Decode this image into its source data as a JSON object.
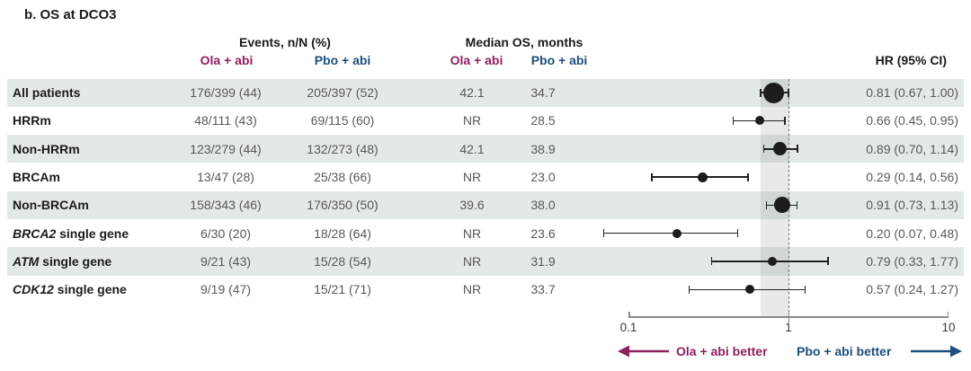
{
  "title": "b. OS at DCO3",
  "columns": {
    "events_group": "Events, n/N (%)",
    "median_group": "Median OS, months",
    "arm_ola": "Ola + abi",
    "arm_pbo": "Pbo + abi",
    "hr": "HR (95% CI)"
  },
  "colors": {
    "ola_accent": "#8e1f5f",
    "pbo_accent": "#1d4e7d",
    "row_shade": "#e3e9e6",
    "marker": "#1c1c1c"
  },
  "axis": {
    "label_min": "0.1",
    "label_mid": "1",
    "label_max": "10"
  },
  "legend": {
    "left": "Ola + abi better",
    "right": "Pbo + abi better"
  },
  "chart_data": {
    "type": "forest",
    "title": "b. OS at DCO3",
    "x_axis": {
      "scale": "log",
      "range": [
        0.1,
        10
      ],
      "ticks": [
        0.1,
        1,
        10
      ]
    },
    "reference_line": 1.0,
    "reference_band": [
      0.67,
      1.0
    ],
    "rows": [
      {
        "group_italic": "",
        "group": "All patients",
        "events_ola": "176/399 (44)",
        "events_pbo": "205/397 (52)",
        "median_ola": "42.1",
        "median_pbo": "34.7",
        "hr_text": "0.81 (0.67, 1.00)",
        "hr": 0.81,
        "ci_low": 0.67,
        "ci_high": 1.0,
        "marker_size": 23,
        "shaded": true
      },
      {
        "group_italic": "",
        "group": "HRRm",
        "events_ola": "48/111 (43)",
        "events_pbo": "69/115 (60)",
        "median_ola": "NR",
        "median_pbo": "28.5",
        "hr_text": "0.66 (0.45, 0.95)",
        "hr": 0.66,
        "ci_low": 0.45,
        "ci_high": 0.95,
        "marker_size": 10,
        "shaded": false
      },
      {
        "group_italic": "",
        "group": "Non-HRRm",
        "events_ola": "123/279 (44)",
        "events_pbo": "132/273 (48)",
        "median_ola": "42.1",
        "median_pbo": "38.9",
        "hr_text": "0.89 (0.70, 1.14)",
        "hr": 0.89,
        "ci_low": 0.7,
        "ci_high": 1.14,
        "marker_size": 15,
        "shaded": true
      },
      {
        "group_italic": "",
        "group": "BRCAm",
        "events_ola": "13/47 (28)",
        "events_pbo": "25/38 (66)",
        "median_ola": "NR",
        "median_pbo": "23.0",
        "hr_text": "0.29 (0.14, 0.56)",
        "hr": 0.29,
        "ci_low": 0.14,
        "ci_high": 0.56,
        "marker_size": 11,
        "shaded": false
      },
      {
        "group_italic": "",
        "group": "Non-BRCAm",
        "events_ola": "158/343 (46)",
        "events_pbo": "176/350 (50)",
        "median_ola": "39.6",
        "median_pbo": "38.0",
        "hr_text": "0.91 (0.73, 1.13)",
        "hr": 0.91,
        "ci_low": 0.73,
        "ci_high": 1.13,
        "marker_size": 18,
        "shaded": true
      },
      {
        "group_italic": "BRCA2",
        "group": " single gene",
        "events_ola": "6/30 (20)",
        "events_pbo": "18/28 (64)",
        "median_ola": "NR",
        "median_pbo": "23.6",
        "hr_text": "0.20 (0.07, 0.48)",
        "hr": 0.2,
        "ci_low": 0.07,
        "ci_high": 0.48,
        "marker_size": 10,
        "shaded": false
      },
      {
        "group_italic": "ATM",
        "group": " single gene",
        "events_ola": "9/21 (43)",
        "events_pbo": "15/28 (54)",
        "median_ola": "NR",
        "median_pbo": "31.9",
        "hr_text": "0.79 (0.33, 1.77)",
        "hr": 0.79,
        "ci_low": 0.33,
        "ci_high": 1.77,
        "marker_size": 10,
        "shaded": true
      },
      {
        "group_italic": "CDK12",
        "group": " single gene",
        "events_ola": "9/19 (47)",
        "events_pbo": "15/21 (71)",
        "median_ola": "NR",
        "median_pbo": "33.7",
        "hr_text": "0.57 (0.24, 1.27)",
        "hr": 0.57,
        "ci_low": 0.24,
        "ci_high": 1.27,
        "marker_size": 10,
        "shaded": false
      }
    ]
  }
}
